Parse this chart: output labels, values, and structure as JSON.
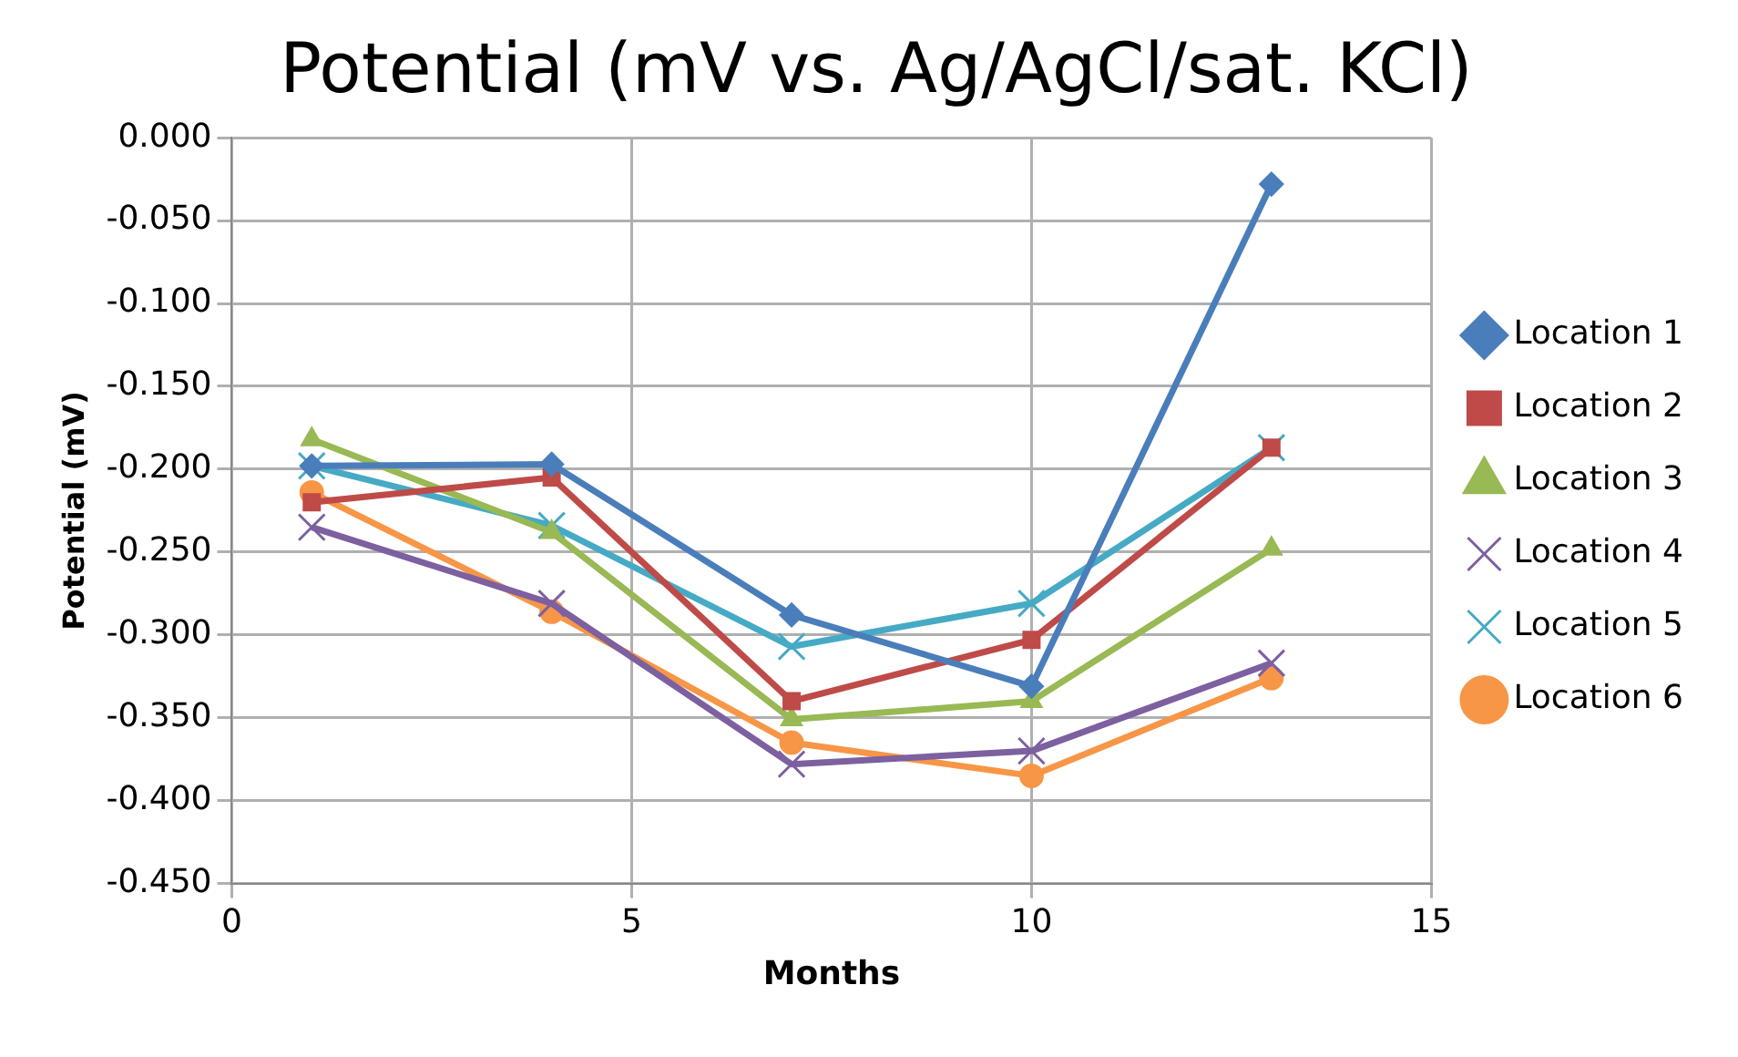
{
  "chart_data": {
    "type": "line",
    "title": "Potential (mV vs. Ag/AgCl/sat. KCl)",
    "xlabel": "Months",
    "ylabel": "Potential (mV)",
    "x": [
      1,
      4,
      7,
      10,
      13
    ],
    "series": [
      {
        "name": "Location 1",
        "color": "#4a7ebb",
        "marker": "diamond",
        "values": [
          -0.198,
          -0.197,
          -0.288,
          -0.331,
          -0.028
        ]
      },
      {
        "name": "Location 2",
        "color": "#be4b48",
        "marker": "square",
        "values": [
          -0.22,
          -0.205,
          -0.34,
          -0.303,
          -0.187
        ]
      },
      {
        "name": "Location 3",
        "color": "#98b954",
        "marker": "triangle",
        "values": [
          -0.182,
          -0.238,
          -0.351,
          -0.34,
          -0.248
        ]
      },
      {
        "name": "Location 4",
        "color": "#7d60a0",
        "marker": "cross",
        "values": [
          -0.235,
          -0.281,
          -0.378,
          -0.37,
          -0.317
        ]
      },
      {
        "name": "Location 5",
        "color": "#46aac5",
        "marker": "cross",
        "values": [
          -0.198,
          -0.234,
          -0.307,
          -0.281,
          -0.187
        ]
      },
      {
        "name": "Location 6",
        "color": "#f79646",
        "marker": "circle",
        "values": [
          -0.214,
          -0.286,
          -0.365,
          -0.385,
          -0.326
        ]
      }
    ],
    "xlim": [
      0,
      15
    ],
    "xticks": [
      0,
      5,
      10,
      15
    ],
    "ylim": [
      -0.45,
      0
    ],
    "yticks": [
      {
        "value": 0,
        "label": "0.000"
      },
      {
        "value": -0.05,
        "label": "-0.050"
      },
      {
        "value": -0.1,
        "label": "-0.100"
      },
      {
        "value": -0.15,
        "label": "-0.150"
      },
      {
        "value": -0.2,
        "label": "-0.200"
      },
      {
        "value": -0.25,
        "label": "-0.250"
      },
      {
        "value": -0.3,
        "label": "-0.300"
      },
      {
        "value": -0.35,
        "label": "-0.350"
      },
      {
        "value": -0.4,
        "label": "-0.400"
      },
      {
        "value": -0.45,
        "label": "-0.450"
      }
    ],
    "grid": true,
    "legend": "right",
    "line_style": "solid"
  }
}
